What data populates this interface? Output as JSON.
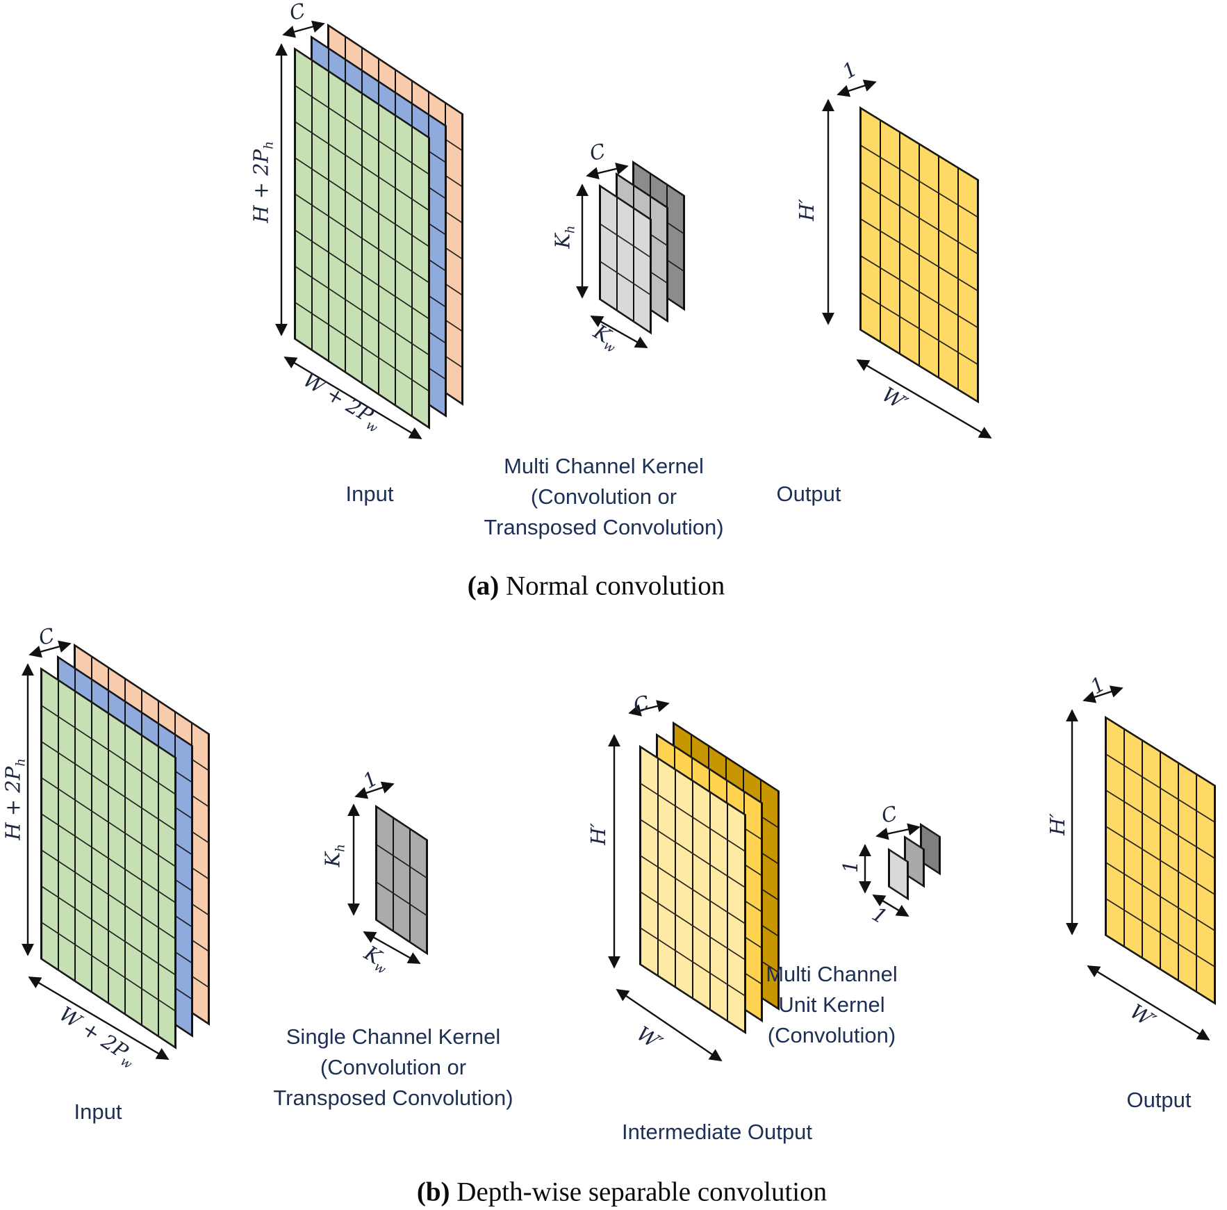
{
  "colors": {
    "background": "#ffffff",
    "line": "#111111",
    "label_text": "#1c2f55",
    "dim_text": "#1d2640",
    "caption_text": "#0a0a0a"
  },
  "figure": {
    "panel_a": {
      "caption": {
        "tag": "(a)",
        "text": "Normal convolution"
      },
      "input": {
        "label": "Input",
        "dims": {
          "depth": {
            "main": "C"
          },
          "height": {
            "main": "H + 2P",
            "sub": "h"
          },
          "width": {
            "main": "W + 2P",
            "sub": "w"
          }
        },
        "grid": {
          "rows": 8,
          "cols": 8,
          "channels": 3,
          "layer_colors": [
            "#c6e0b4",
            "#8faadc",
            "#f8cbad"
          ]
        }
      },
      "kernel": {
        "label_lines": [
          "Multi Channel Kernel",
          "(Convolution or",
          "Transposed Convolution)"
        ],
        "dims": {
          "depth": {
            "main": "C"
          },
          "height": {
            "main": "K",
            "sub": "h"
          },
          "width": {
            "main": "K",
            "sub": "w"
          }
        },
        "grid": {
          "rows": 3,
          "cols": 3,
          "channels": 3,
          "layer_colors": [
            "#d9d9d9",
            "#bfbfbf",
            "#8c8c8c"
          ]
        }
      },
      "output": {
        "label": "Output",
        "dims": {
          "depth": {
            "main": "1"
          },
          "height": {
            "main": "H′"
          },
          "width": {
            "main": "W′"
          }
        },
        "grid": {
          "rows": 6,
          "cols": 6,
          "channels": 1,
          "layer_colors": [
            "#ffd966"
          ]
        }
      }
    },
    "panel_b": {
      "caption": {
        "tag": "(b)",
        "text": "Depth-wise separable convolution"
      },
      "input": {
        "label": "Input",
        "dims": {
          "depth": {
            "main": "C"
          },
          "height": {
            "main": "H + 2P",
            "sub": "h"
          },
          "width": {
            "main": "W + 2P",
            "sub": "w"
          }
        },
        "grid": {
          "rows": 8,
          "cols": 8,
          "channels": 3,
          "layer_colors": [
            "#c6e0b4",
            "#8faadc",
            "#f8cbad"
          ]
        }
      },
      "kernel": {
        "label_lines": [
          "Single Channel Kernel",
          "(Convolution or",
          "Transposed Convolution)"
        ],
        "dims": {
          "depth": {
            "main": "1"
          },
          "height": {
            "main": "K",
            "sub": "h"
          },
          "width": {
            "main": "K",
            "sub": "w"
          }
        },
        "grid": {
          "rows": 3,
          "cols": 3,
          "channels": 1,
          "layer_colors": [
            "#ababab"
          ]
        }
      },
      "intermediate": {
        "label": "Intermediate Output",
        "dims": {
          "depth": {
            "main": "C"
          },
          "height": {
            "main": "H′"
          },
          "width": {
            "main": "W′"
          }
        },
        "grid": {
          "rows": 6,
          "cols": 6,
          "channels": 3,
          "layer_colors": [
            "#ffeaa3",
            "#ffd34f",
            "#c79500"
          ]
        }
      },
      "unit_kernel": {
        "label_lines": [
          "Multi Channel",
          "Unit Kernel",
          "(Convolution)"
        ],
        "dims": {
          "depth": {
            "main": "C"
          },
          "height": {
            "main": "1"
          },
          "width": {
            "main": "1"
          }
        },
        "grid": {
          "rows": 1,
          "cols": 1,
          "channels": 3,
          "layer_colors": [
            "#d9d9d9",
            "#a9a9a9",
            "#7f7f7f"
          ]
        }
      },
      "output": {
        "label": "Output",
        "dims": {
          "depth": {
            "main": "1"
          },
          "height": {
            "main": "H′"
          },
          "width": {
            "main": "W′"
          }
        },
        "grid": {
          "rows": 6,
          "cols": 6,
          "channels": 1,
          "layer_colors": [
            "#ffd966"
          ]
        }
      }
    }
  }
}
